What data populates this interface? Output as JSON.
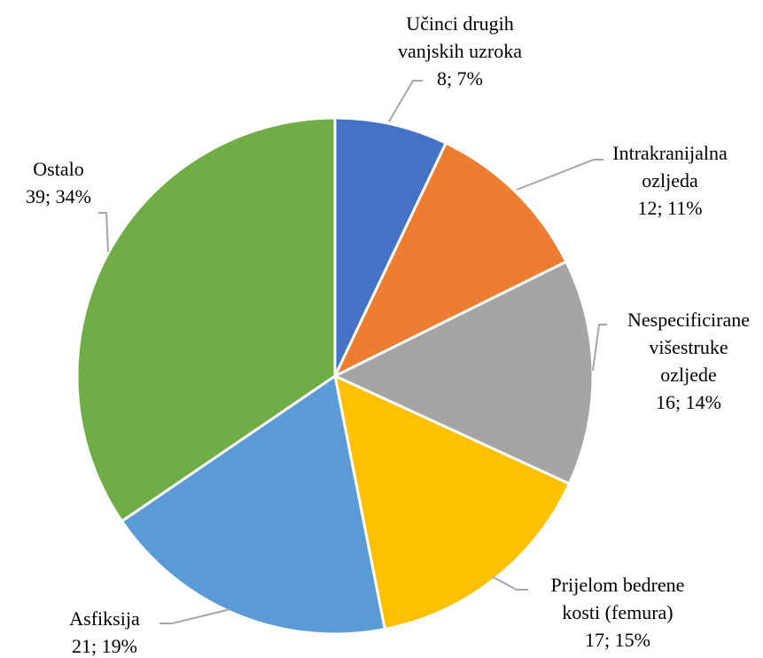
{
  "chart_data": {
    "type": "pie",
    "title": "",
    "start_angle_deg": 0,
    "direction": "clockwise",
    "slices": [
      {
        "lines": [
          "Učinci drugih",
          "vanjskih uzroka"
        ],
        "value": 8,
        "percent": "7%",
        "color": "#4472C4"
      },
      {
        "lines": [
          "Intrakranijalna",
          "ozljeda"
        ],
        "value": 12,
        "percent": "11%",
        "color": "#ED7D31"
      },
      {
        "lines": [
          "Nespecificirane",
          "višestruke",
          "ozljede"
        ],
        "value": 16,
        "percent": "14%",
        "color": "#A5A5A5"
      },
      {
        "lines": [
          "Prijelom bedrene",
          "kosti (femura)"
        ],
        "value": 17,
        "percent": "15%",
        "color": "#FFC000"
      },
      {
        "lines": [
          "Asfiksija"
        ],
        "value": 21,
        "percent": "19%",
        "color": "#5B9BD5"
      },
      {
        "lines": [
          "Ostalo"
        ],
        "value": 39,
        "percent": "34%",
        "color": "#70AD47"
      }
    ]
  }
}
